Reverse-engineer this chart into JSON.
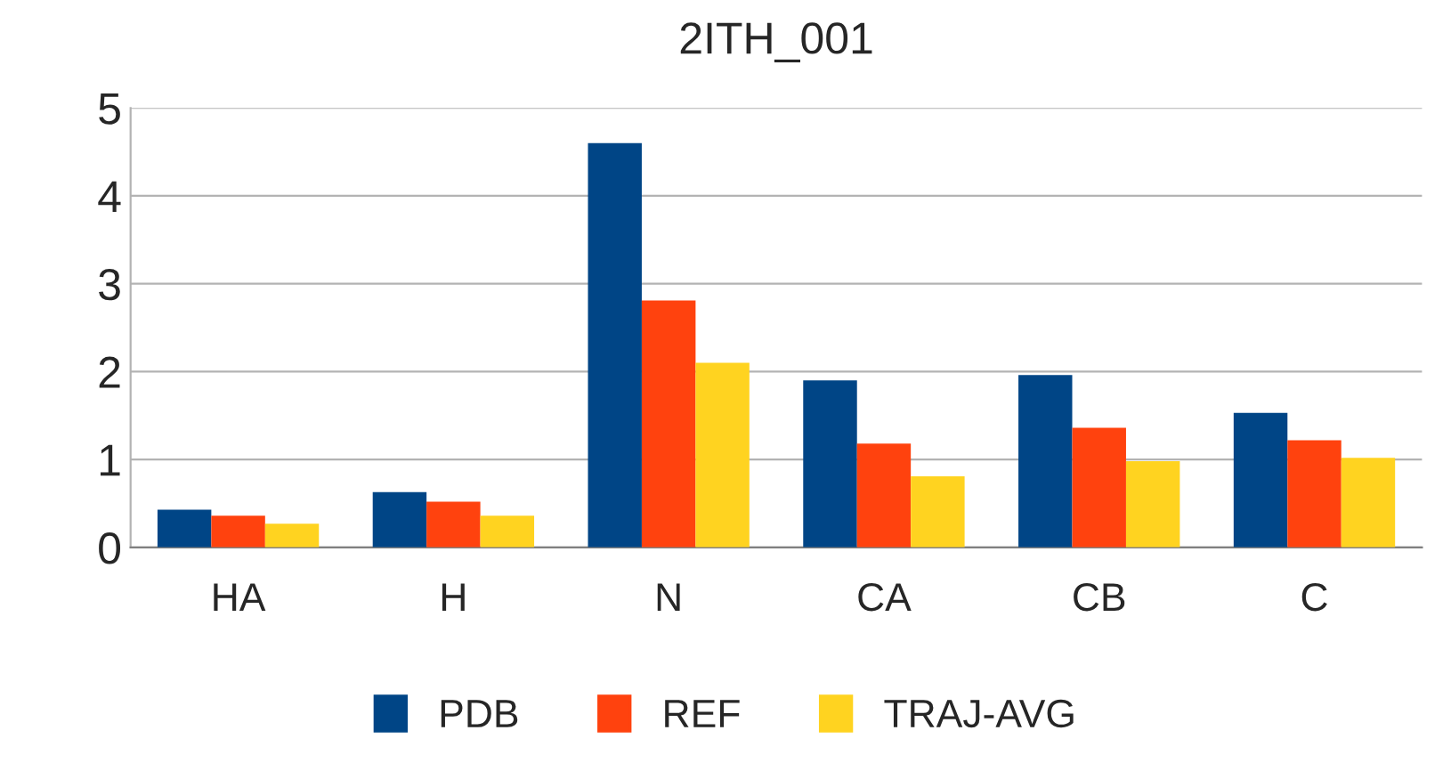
{
  "chart_data": {
    "type": "bar",
    "title": "2ITH_001",
    "categories": [
      "HA",
      "H",
      "N",
      "CA",
      "CB",
      "C"
    ],
    "series": [
      {
        "name": "PDB",
        "color": "#004586",
        "values": [
          0.43,
          0.63,
          4.6,
          1.9,
          1.96,
          1.53
        ]
      },
      {
        "name": "REF",
        "color": "#ff420e",
        "values": [
          0.36,
          0.52,
          2.81,
          1.18,
          1.36,
          1.22
        ]
      },
      {
        "name": "TRAJ-AVG",
        "color": "#ffd320",
        "values": [
          0.27,
          0.36,
          2.1,
          0.81,
          0.98,
          1.02
        ]
      }
    ],
    "ylim": [
      0,
      5
    ],
    "yticks": [
      0,
      1,
      2,
      3,
      4,
      5
    ],
    "grid": "y",
    "legend": "bottom"
  }
}
